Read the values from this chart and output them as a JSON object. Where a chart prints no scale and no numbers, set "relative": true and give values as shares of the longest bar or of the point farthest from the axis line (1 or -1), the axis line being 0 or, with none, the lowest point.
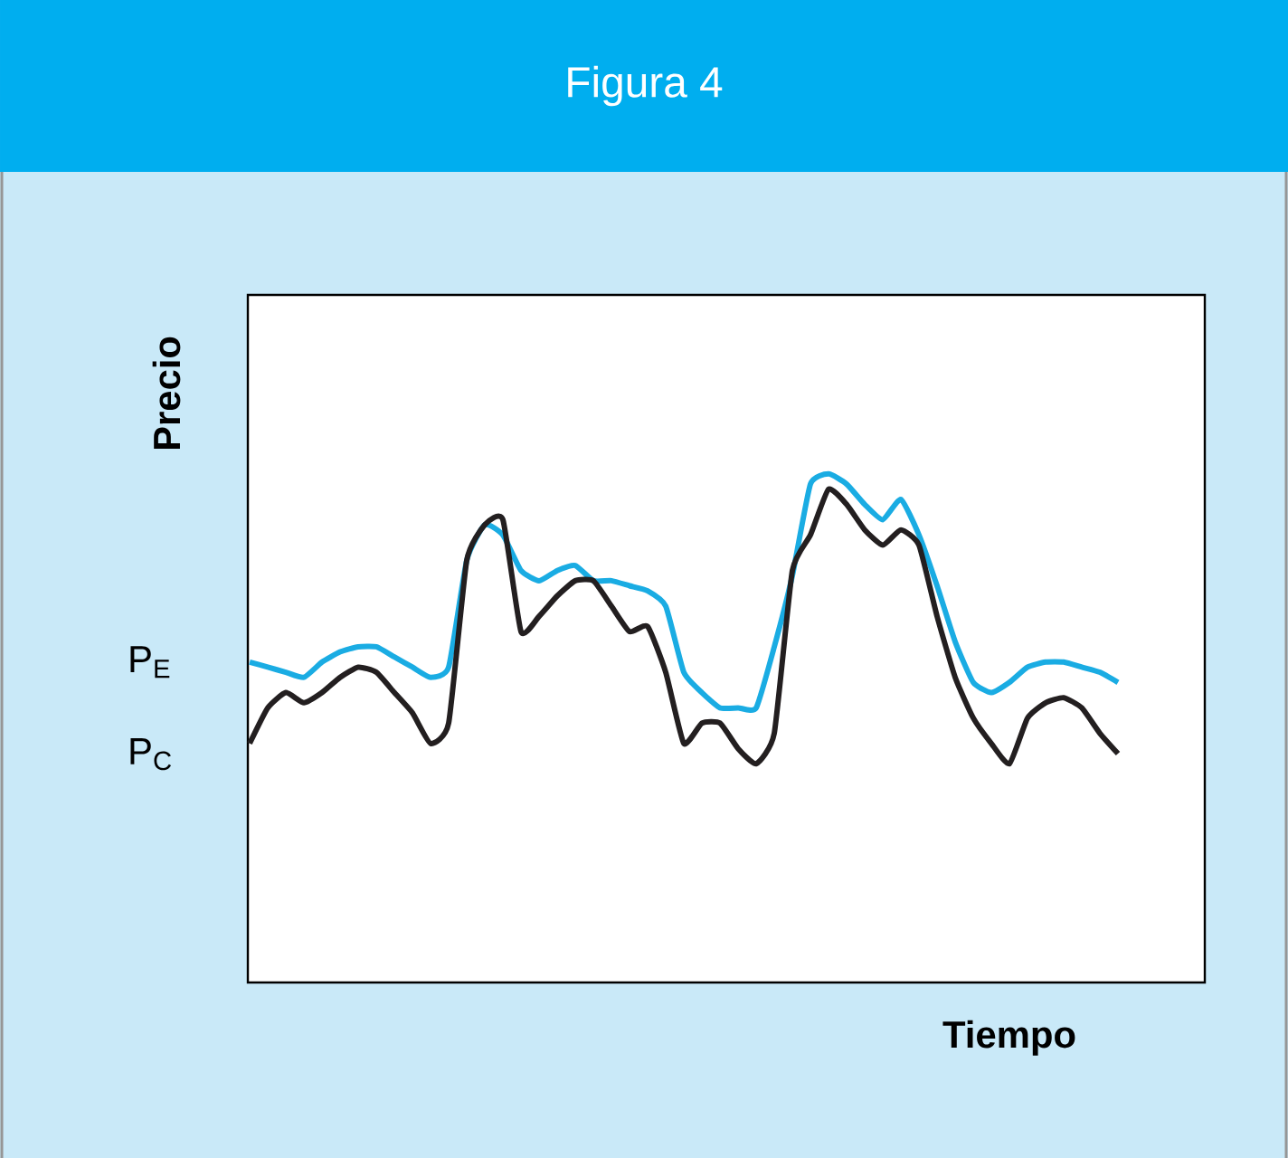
{
  "chart_data": {
    "type": "line",
    "title": "Figura 4",
    "xlabel": "Tiempo",
    "ylabel": "Precio",
    "relative": true,
    "categories": [
      null,
      null,
      null,
      null,
      null,
      null,
      null,
      null,
      null,
      null,
      null,
      null,
      null,
      null,
      null,
      null,
      null,
      null,
      null,
      null,
      null,
      null,
      null,
      null,
      null,
      null,
      null,
      null,
      null,
      null,
      null,
      null,
      null,
      null,
      null,
      null,
      null,
      null,
      null,
      null,
      null,
      null,
      null,
      null,
      null,
      null,
      null,
      null,
      null
    ],
    "series": [
      {
        "color": "#1aace3",
        "values": [
          0.63,
          0.62,
          0.61,
          0.6,
          0.63,
          0.65,
          0.66,
          0.66,
          0.64,
          0.62,
          0.6,
          0.62,
          0.83,
          0.9,
          0.88,
          0.81,
          0.79,
          0.81,
          0.82,
          0.79,
          0.79,
          0.78,
          0.77,
          0.74,
          0.61,
          0.57,
          0.54,
          0.54,
          0.54,
          0.66,
          0.8,
          0.98,
          1.0,
          0.98,
          0.94,
          0.91,
          0.95,
          0.88,
          0.78,
          0.67,
          0.59,
          0.57,
          0.59,
          0.62,
          0.63,
          0.63,
          0.62,
          0.61,
          0.59
        ]
      },
      {
        "color": "#231f20",
        "values": [
          0.47,
          0.54,
          0.57,
          0.55,
          0.57,
          0.6,
          0.62,
          0.61,
          0.57,
          0.53,
          0.47,
          0.51,
          0.83,
          0.9,
          0.91,
          0.69,
          0.72,
          0.76,
          0.79,
          0.79,
          0.74,
          0.69,
          0.7,
          0.61,
          0.47,
          0.51,
          0.51,
          0.46,
          0.43,
          0.49,
          0.81,
          0.88,
          0.97,
          0.94,
          0.89,
          0.86,
          0.89,
          0.86,
          0.72,
          0.6,
          0.52,
          0.47,
          0.43,
          0.52,
          0.55,
          0.56,
          0.54,
          0.49,
          0.45
        ]
      }
    ],
    "annotations": [
      "P$_{E}$",
      "P$_{C}$"
    ],
    "line_style": "solid",
    "marker": "none"
  }
}
